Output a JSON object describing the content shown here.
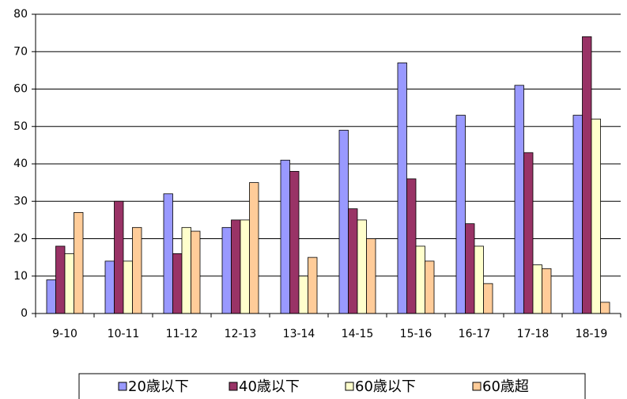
{
  "chart_data": {
    "type": "bar",
    "categories": [
      "9-10",
      "10-11",
      "11-12",
      "12-13",
      "13-14",
      "14-15",
      "15-16",
      "16-17",
      "17-18",
      "18-19"
    ],
    "series": [
      {
        "name": "20歳以下",
        "color": "#9999ff",
        "values": [
          9,
          14,
          32,
          23,
          41,
          49,
          67,
          53,
          61,
          53
        ]
      },
      {
        "name": "40歳以下",
        "color": "#993366",
        "values": [
          18,
          30,
          16,
          25,
          38,
          28,
          36,
          24,
          43,
          74
        ]
      },
      {
        "name": "60歳以下",
        "color": "#ffffcc",
        "values": [
          16,
          14,
          23,
          25,
          10,
          25,
          18,
          18,
          13,
          52
        ]
      },
      {
        "name": "60歳超",
        "color": "#ffcc99",
        "values": [
          27,
          23,
          22,
          35,
          15,
          20,
          14,
          8,
          12,
          3
        ]
      }
    ],
    "ylim": [
      0,
      80
    ],
    "yticks": [
      0,
      10,
      20,
      30,
      40,
      50,
      60,
      70,
      80
    ],
    "grid": true,
    "legend": "bottom"
  }
}
